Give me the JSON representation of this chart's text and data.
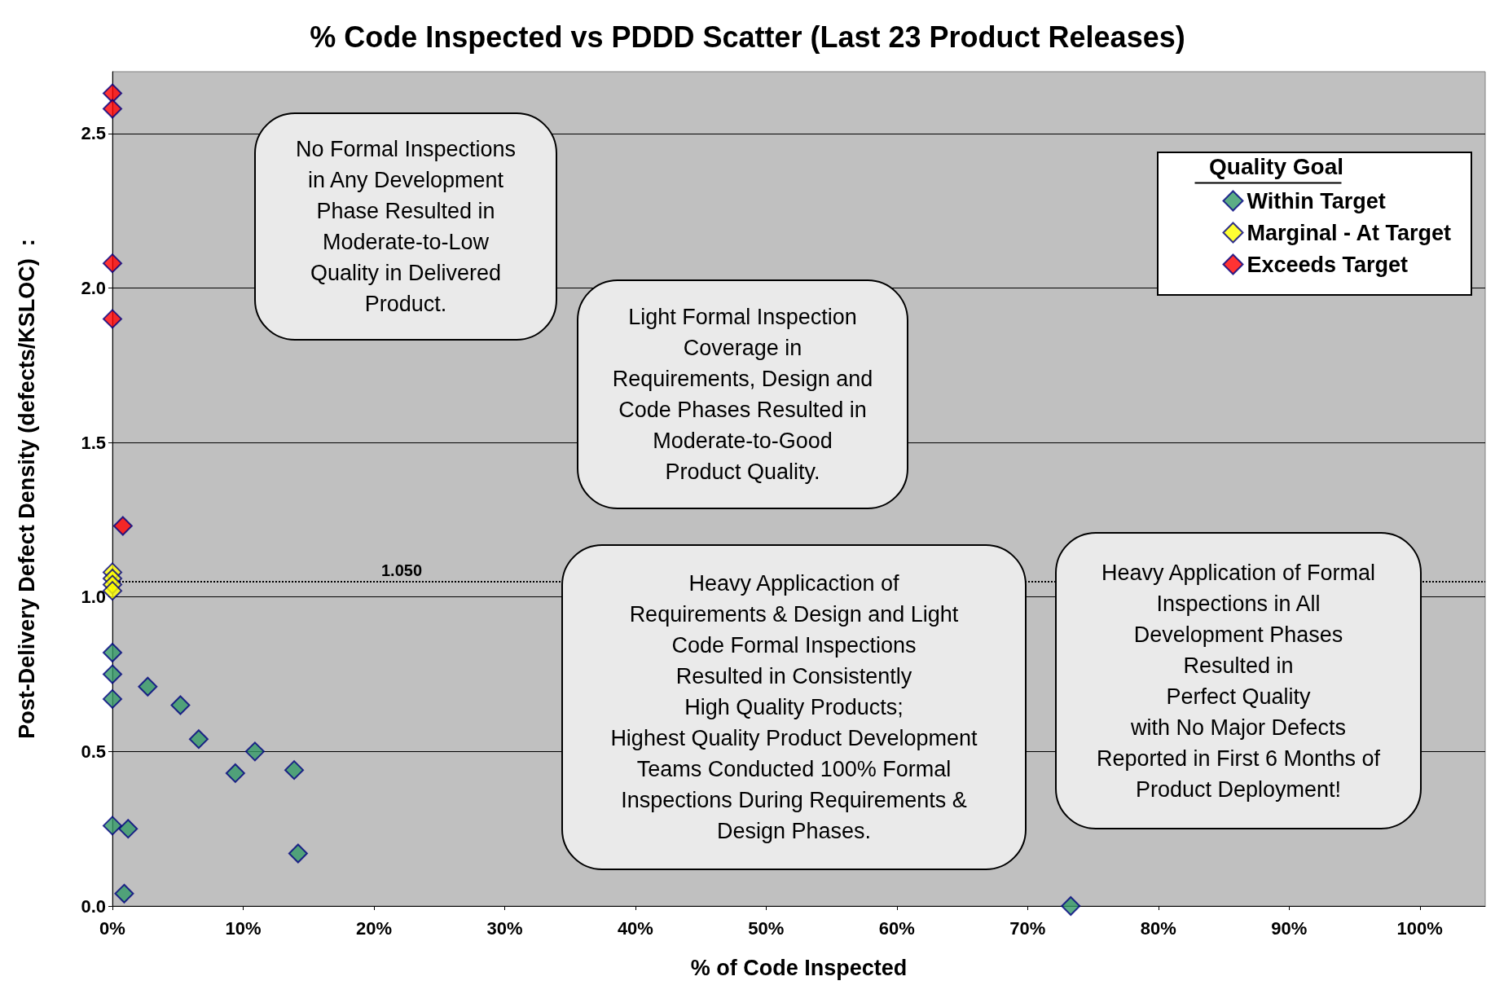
{
  "chart_data": {
    "type": "scatter",
    "title": "% Code Inspected vs PDDD Scatter (Last 23 Product Releases)",
    "xlabel": "% of Code Inspected",
    "ylabel": "Post-Delivery Defect Density (defects/KSLOC)  :",
    "legend_title": "Quality Goal",
    "xlim": [
      0,
      105
    ],
    "ylim": [
      0,
      2.7
    ],
    "xticks": [
      {
        "value": 0,
        "label": "0%"
      },
      {
        "value": 10,
        "label": "10%"
      },
      {
        "value": 20,
        "label": "20%"
      },
      {
        "value": 30,
        "label": "30%"
      },
      {
        "value": 40,
        "label": "40%"
      },
      {
        "value": 50,
        "label": "50%"
      },
      {
        "value": 60,
        "label": "60%"
      },
      {
        "value": 70,
        "label": "70%"
      },
      {
        "value": 80,
        "label": "80%"
      },
      {
        "value": 90,
        "label": "90%"
      },
      {
        "value": 100,
        "label": "100%"
      }
    ],
    "yticks": [
      {
        "value": 0,
        "label": "0.0"
      },
      {
        "value": 0.5,
        "label": "0.5"
      },
      {
        "value": 1,
        "label": "1.0"
      },
      {
        "value": 1.5,
        "label": "1.5"
      },
      {
        "value": 2,
        "label": "2.0"
      },
      {
        "value": 2.5,
        "label": "2.5"
      }
    ],
    "series": [
      {
        "name": "Within Target",
        "color": "#339966",
        "x": [
          0,
          0,
          0,
          2.7,
          5.2,
          6.6,
          10.9,
          9.4,
          13.9,
          0,
          1.2,
          14.2,
          0.9,
          73.3
        ],
        "values": [
          0.82,
          0.75,
          0.67,
          0.71,
          0.65,
          0.54,
          0.5,
          0.43,
          0.44,
          0.26,
          0.25,
          0.17,
          0.04,
          0
        ]
      },
      {
        "name": "Marginal - At Target",
        "color": "#ffff00",
        "x": [
          0,
          0,
          0,
          0
        ],
        "values": [
          1.08,
          1.06,
          1.04,
          1.02
        ]
      },
      {
        "name": "Exceeds Target",
        "color": "#ff0000",
        "x": [
          0,
          0,
          0,
          0,
          0.8
        ],
        "values": [
          2.63,
          2.58,
          2.08,
          1.9,
          1.23
        ]
      }
    ],
    "ref_lines": [
      {
        "axis": "y",
        "value": 1.05,
        "label": "1.050",
        "color": "#000000",
        "line_style": "dotted"
      }
    ],
    "annotations": [
      "No Formal Inspections\nin Any Development\nPhase Resulted in\nModerate-to-Low\nQuality in Delivered\nProduct.",
      "Light Formal Inspection\nCoverage in\nRequirements, Design and\nCode Phases Resulted in\nModerate-to-Good\nProduct Quality.",
      "Heavy Applicaction of\nRequirements & Design and Light\nCode Formal Inspections\nResulted in Consistently\nHigh Quality Products;\nHighest Quality Product Development\nTeams Conducted 100% Formal\nInspections During Requirements &\nDesign Phases.",
      "Heavy Application of Formal\nInspections in All\nDevelopment Phases\nResulted in\nPerfect Quality\nwith No Major Defects\nReported in First 6 Months of\nProduct Deployment!"
    ],
    "grid": "y",
    "legend": "top right",
    "marker": "diamond"
  }
}
